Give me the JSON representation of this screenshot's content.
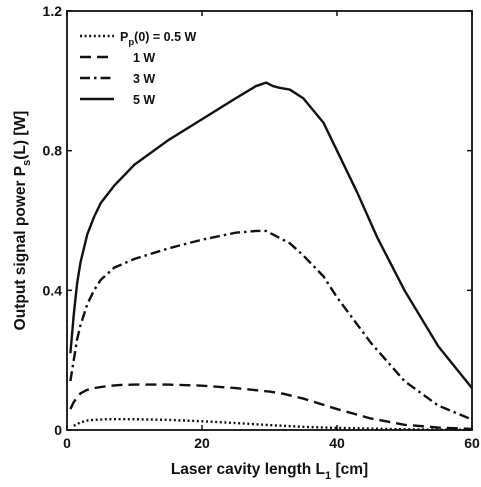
{
  "chart_data": {
    "type": "line",
    "xlabel": {
      "main": "Laser cavity length L",
      "sub": "1",
      "unit": " [cm]"
    },
    "ylabel": {
      "main": "Output signal power P",
      "sub": "s",
      "unit": "(L) [W]"
    },
    "xlim": [
      0,
      60
    ],
    "ylim": [
      0,
      1.2
    ],
    "xticks": [
      0,
      20,
      40,
      60
    ],
    "xtick_labels": [
      "0",
      "20",
      "40",
      "60"
    ],
    "yticks": [
      0,
      0.4,
      0.8,
      1.2
    ],
    "ytick_labels": [
      "0",
      "0.4",
      "0.8",
      "1.2"
    ],
    "grid": false,
    "legend_position": "top-left",
    "legend_prefix": {
      "main": "P",
      "sub": "p",
      "rest": "(0) = "
    },
    "series": [
      {
        "name": "0.5 W",
        "style": "dotted",
        "x": [
          1,
          2,
          3,
          4,
          5,
          6,
          8,
          10,
          12,
          15,
          20,
          25,
          30,
          35,
          40,
          45,
          50,
          55,
          60
        ],
        "values": [
          0.012,
          0.022,
          0.027,
          0.029,
          0.03,
          0.031,
          0.031,
          0.031,
          0.03,
          0.029,
          0.025,
          0.02,
          0.014,
          0.009,
          0.006,
          0.004,
          0.002,
          0.001,
          0.001
        ]
      },
      {
        "name": "1 W",
        "style": "dashed",
        "x": [
          0.5,
          1,
          2,
          3,
          4,
          6,
          8,
          10,
          15,
          20,
          25,
          30,
          32,
          35,
          40,
          45,
          50,
          55,
          60
        ],
        "values": [
          0.06,
          0.08,
          0.105,
          0.115,
          0.12,
          0.126,
          0.129,
          0.13,
          0.13,
          0.127,
          0.12,
          0.11,
          0.104,
          0.09,
          0.06,
          0.033,
          0.015,
          0.007,
          0.003
        ]
      },
      {
        "name": "3 W",
        "style": "dashdot",
        "x": [
          0.5,
          1,
          1.5,
          2,
          3,
          4,
          5,
          7,
          10,
          15,
          20,
          25,
          28,
          29.5,
          31,
          33,
          35,
          38,
          40,
          45,
          50,
          55,
          60
        ],
        "values": [
          0.14,
          0.2,
          0.26,
          0.3,
          0.36,
          0.4,
          0.43,
          0.465,
          0.49,
          0.52,
          0.545,
          0.565,
          0.57,
          0.57,
          0.555,
          0.535,
          0.5,
          0.44,
          0.38,
          0.25,
          0.14,
          0.07,
          0.03
        ]
      },
      {
        "name": "5 W",
        "style": "solid",
        "x": [
          0.5,
          1,
          1.5,
          2,
          3,
          4,
          5,
          7,
          10,
          15,
          20,
          25,
          28,
          29.5,
          30.5,
          31.5,
          33,
          35,
          38,
          40,
          43,
          46,
          50,
          55,
          60
        ],
        "values": [
          0.22,
          0.33,
          0.42,
          0.48,
          0.56,
          0.61,
          0.65,
          0.7,
          0.76,
          0.83,
          0.89,
          0.95,
          0.985,
          0.995,
          0.985,
          0.98,
          0.975,
          0.95,
          0.88,
          0.8,
          0.68,
          0.55,
          0.4,
          0.24,
          0.12
        ]
      }
    ]
  }
}
